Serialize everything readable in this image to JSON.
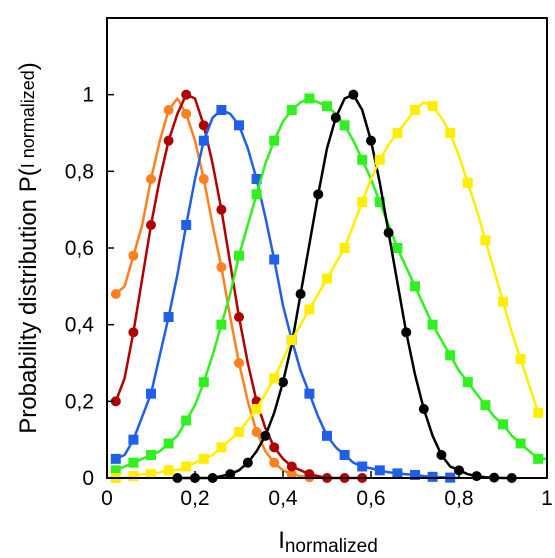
{
  "chart_data": {
    "type": "line",
    "xlabel_main": "I",
    "xlabel_sub": "normalized",
    "ylabel_main": "Probability distribution  P(",
    "ylabel_sub": "I normalized",
    "ylabel_close": ")",
    "xlim": [
      0,
      1
    ],
    "ylim": [
      0,
      1.2
    ],
    "x_ticks": [
      0,
      0.2,
      0.4,
      0.6,
      0.8,
      1
    ],
    "x_tick_labels": [
      "0",
      "0,2",
      "0,4",
      "0,6",
      "0,8",
      "1"
    ],
    "y_ticks": [
      0,
      0.2,
      0.4,
      0.6,
      0.8,
      1
    ],
    "y_tick_labels": [
      "0",
      "0,2",
      "0,4",
      "0,6",
      "0,8",
      "1"
    ],
    "grid": false,
    "series": [
      {
        "color": "#ff8020",
        "marker": "circle",
        "x": [
          0.02,
          0.04,
          0.06,
          0.08,
          0.1,
          0.12,
          0.14,
          0.16,
          0.18,
          0.2,
          0.22,
          0.24,
          0.26,
          0.28,
          0.3,
          0.32,
          0.34,
          0.36,
          0.38,
          0.4,
          0.42,
          0.44,
          0.46,
          0.48
        ],
        "y": [
          0.48,
          0.5,
          0.58,
          0.66,
          0.78,
          0.88,
          0.96,
          0.99,
          0.95,
          0.88,
          0.78,
          0.66,
          0.55,
          0.42,
          0.3,
          0.2,
          0.12,
          0.07,
          0.04,
          0.02,
          0.01,
          0.005,
          0.002,
          0.0
        ]
      },
      {
        "color": "#b00000",
        "marker": "circle",
        "x": [
          0.02,
          0.04,
          0.06,
          0.08,
          0.1,
          0.12,
          0.14,
          0.16,
          0.18,
          0.2,
          0.22,
          0.24,
          0.26,
          0.28,
          0.3,
          0.32,
          0.34,
          0.36,
          0.38,
          0.4,
          0.42,
          0.44,
          0.46,
          0.48,
          0.5,
          0.52,
          0.54,
          0.56,
          0.58
        ],
        "y": [
          0.2,
          0.26,
          0.38,
          0.52,
          0.66,
          0.78,
          0.88,
          0.95,
          1.0,
          0.99,
          0.92,
          0.82,
          0.7,
          0.56,
          0.42,
          0.3,
          0.2,
          0.13,
          0.08,
          0.05,
          0.03,
          0.02,
          0.01,
          0.005,
          0.0,
          0.0,
          0.0,
          0.0,
          0.0
        ]
      },
      {
        "color": "#2060e8",
        "marker": "square",
        "x": [
          0.02,
          0.04,
          0.06,
          0.08,
          0.1,
          0.12,
          0.14,
          0.16,
          0.18,
          0.2,
          0.22,
          0.24,
          0.26,
          0.28,
          0.3,
          0.32,
          0.34,
          0.36,
          0.38,
          0.4,
          0.42,
          0.44,
          0.46,
          0.48,
          0.5,
          0.52,
          0.54,
          0.56,
          0.58,
          0.6,
          0.62,
          0.64,
          0.66,
          0.68,
          0.7,
          0.72,
          0.74,
          0.76,
          0.78,
          0.8
        ],
        "y": [
          0.05,
          0.06,
          0.1,
          0.16,
          0.22,
          0.32,
          0.42,
          0.53,
          0.66,
          0.78,
          0.88,
          0.94,
          0.96,
          0.95,
          0.92,
          0.86,
          0.78,
          0.68,
          0.57,
          0.45,
          0.36,
          0.28,
          0.22,
          0.16,
          0.11,
          0.08,
          0.06,
          0.04,
          0.03,
          0.025,
          0.02,
          0.015,
          0.012,
          0.01,
          0.008,
          0.005,
          0.003,
          0.002,
          0.001,
          0.0
        ]
      },
      {
        "color": "#30f020",
        "marker": "square",
        "x": [
          0.02,
          0.04,
          0.06,
          0.08,
          0.1,
          0.12,
          0.14,
          0.16,
          0.18,
          0.2,
          0.22,
          0.24,
          0.26,
          0.28,
          0.3,
          0.32,
          0.34,
          0.36,
          0.38,
          0.4,
          0.42,
          0.44,
          0.46,
          0.48,
          0.5,
          0.52,
          0.54,
          0.56,
          0.58,
          0.6,
          0.62,
          0.64,
          0.66,
          0.68,
          0.7,
          0.72,
          0.74,
          0.76,
          0.78,
          0.8,
          0.82,
          0.84,
          0.86,
          0.88,
          0.9,
          0.92,
          0.94,
          0.96,
          0.98,
          1.0
        ],
        "y": [
          0.02,
          0.03,
          0.04,
          0.05,
          0.06,
          0.07,
          0.09,
          0.11,
          0.15,
          0.19,
          0.25,
          0.32,
          0.4,
          0.48,
          0.58,
          0.66,
          0.74,
          0.82,
          0.88,
          0.93,
          0.96,
          0.98,
          0.99,
          0.98,
          0.97,
          0.95,
          0.92,
          0.88,
          0.83,
          0.78,
          0.72,
          0.66,
          0.6,
          0.55,
          0.5,
          0.45,
          0.4,
          0.36,
          0.32,
          0.28,
          0.25,
          0.22,
          0.19,
          0.16,
          0.14,
          0.11,
          0.09,
          0.07,
          0.05,
          0.05
        ]
      },
      {
        "color": "#000000",
        "marker": "circle",
        "x": [
          0.16,
          0.18,
          0.2,
          0.22,
          0.24,
          0.26,
          0.28,
          0.3,
          0.32,
          0.34,
          0.36,
          0.38,
          0.4,
          0.42,
          0.44,
          0.46,
          0.48,
          0.5,
          0.52,
          0.54,
          0.56,
          0.58,
          0.6,
          0.62,
          0.64,
          0.66,
          0.68,
          0.7,
          0.72,
          0.74,
          0.76,
          0.78,
          0.8,
          0.82,
          0.84,
          0.86,
          0.88,
          0.9,
          0.92
        ],
        "y": [
          0.0,
          0.0,
          0.0,
          0.0,
          0.0,
          0.005,
          0.01,
          0.02,
          0.04,
          0.07,
          0.11,
          0.17,
          0.25,
          0.35,
          0.48,
          0.61,
          0.74,
          0.86,
          0.94,
          0.99,
          1.0,
          0.96,
          0.88,
          0.77,
          0.64,
          0.51,
          0.38,
          0.27,
          0.18,
          0.11,
          0.06,
          0.03,
          0.02,
          0.01,
          0.005,
          0.002,
          0.001,
          0.0,
          0.0
        ]
      },
      {
        "color": "#ffee00",
        "marker": "square",
        "x": [
          0.02,
          0.04,
          0.06,
          0.08,
          0.1,
          0.12,
          0.14,
          0.16,
          0.18,
          0.2,
          0.22,
          0.24,
          0.26,
          0.28,
          0.3,
          0.32,
          0.34,
          0.36,
          0.38,
          0.4,
          0.42,
          0.44,
          0.46,
          0.48,
          0.5,
          0.52,
          0.54,
          0.56,
          0.58,
          0.6,
          0.62,
          0.64,
          0.66,
          0.68,
          0.7,
          0.72,
          0.74,
          0.76,
          0.78,
          0.8,
          0.82,
          0.84,
          0.86,
          0.88,
          0.9,
          0.92,
          0.94,
          0.96,
          0.98
        ],
        "y": [
          0.0,
          0.0,
          0.005,
          0.01,
          0.01,
          0.015,
          0.02,
          0.02,
          0.03,
          0.04,
          0.05,
          0.06,
          0.08,
          0.1,
          0.12,
          0.15,
          0.18,
          0.22,
          0.26,
          0.31,
          0.36,
          0.4,
          0.44,
          0.48,
          0.52,
          0.56,
          0.6,
          0.66,
          0.72,
          0.78,
          0.83,
          0.87,
          0.9,
          0.93,
          0.96,
          0.98,
          0.97,
          0.94,
          0.9,
          0.84,
          0.77,
          0.7,
          0.62,
          0.54,
          0.46,
          0.38,
          0.31,
          0.24,
          0.17
        ]
      }
    ]
  }
}
